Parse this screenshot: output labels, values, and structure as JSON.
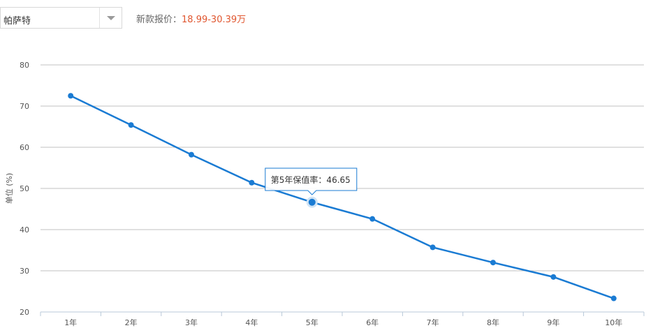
{
  "model_select": {
    "value": "帕萨特"
  },
  "price_info": {
    "label": "新款报价：",
    "value": "18.99-30.39万"
  },
  "tooltip": {
    "text": "第5年保值率：46.65",
    "index": 4
  },
  "colors": {
    "line": "#1a7bd3",
    "grid": "#c0c0c0",
    "price": "#e0562f"
  },
  "chart_data": {
    "type": "line",
    "categories": [
      "1年",
      "2年",
      "3年",
      "4年",
      "5年",
      "6年",
      "7年",
      "8年",
      "9年",
      "10年"
    ],
    "series": [
      {
        "values": [
          72.5,
          65.4,
          58.2,
          51.4,
          46.65,
          42.6,
          35.7,
          32.0,
          28.5,
          23.3
        ]
      }
    ],
    "ylabel": "单位 (%)",
    "ylim": [
      20,
      80
    ],
    "yticks": [
      20,
      30,
      40,
      50,
      60,
      70,
      80
    ],
    "grid": true
  }
}
